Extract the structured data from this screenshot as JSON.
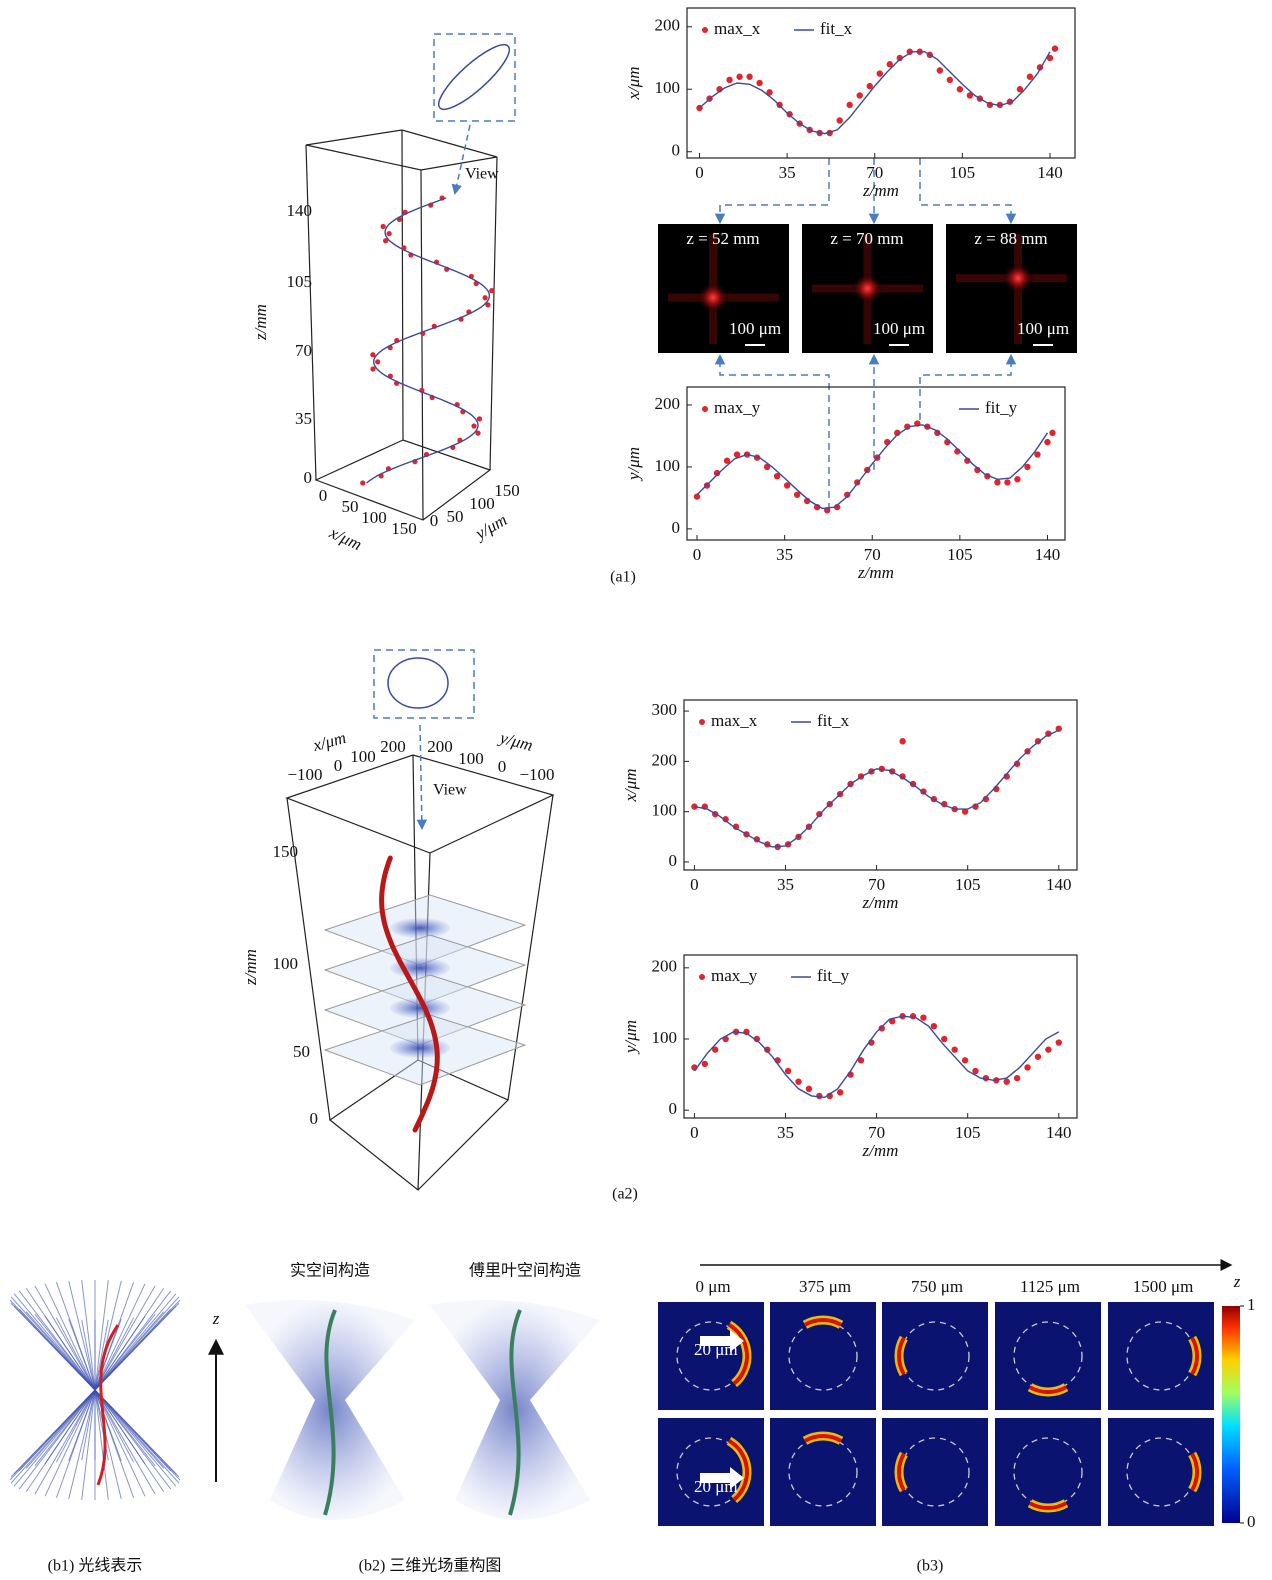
{
  "chart_data": [
    {
      "type": "scatter",
      "ylabel": "x/μm",
      "xlabel": "z/mm",
      "xlim": [
        -5,
        150
      ],
      "ylim": [
        -10,
        230
      ],
      "xticks": [
        0,
        35,
        70,
        105,
        140
      ],
      "yticks": [
        0,
        100,
        200
      ],
      "series": [
        {
          "name": "max_x",
          "mode": "markers",
          "color": "#e0262b",
          "x": [
            0,
            4,
            8,
            12,
            16,
            20,
            24,
            28,
            32,
            36,
            40,
            44,
            48,
            52,
            56,
            60,
            64,
            68,
            72,
            76,
            80,
            84,
            88,
            92,
            96,
            100,
            104,
            108,
            112,
            116,
            120,
            124,
            128,
            132,
            136,
            140,
            142
          ],
          "values": [
            70,
            85,
            100,
            115,
            120,
            120,
            110,
            95,
            75,
            60,
            45,
            35,
            30,
            30,
            50,
            75,
            90,
            105,
            125,
            140,
            150,
            160,
            160,
            155,
            130,
            115,
            100,
            90,
            85,
            75,
            75,
            80,
            100,
            120,
            135,
            150,
            165
          ]
        },
        {
          "name": "fit_x",
          "mode": "line",
          "color": "#3a4aa0",
          "x": [
            0,
            5,
            10,
            15,
            20,
            25,
            30,
            35,
            40,
            45,
            50,
            55,
            60,
            65,
            70,
            75,
            80,
            85,
            90,
            95,
            100,
            105,
            110,
            115,
            120,
            125,
            130,
            135,
            140
          ],
          "values": [
            70,
            88,
            102,
            110,
            108,
            98,
            82,
            62,
            45,
            33,
            29,
            35,
            55,
            80,
            105,
            128,
            148,
            160,
            160,
            148,
            128,
            108,
            90,
            78,
            74,
            80,
            100,
            125,
            160
          ]
        }
      ]
    },
    {
      "type": "scatter",
      "ylabel": "y/μm",
      "xlabel": "z/mm",
      "xlim": [
        -4,
        147
      ],
      "ylim": [
        -18,
        229
      ],
      "xticks": [
        0,
        35,
        70,
        105,
        140
      ],
      "yticks": [
        0,
        100,
        200
      ],
      "series": [
        {
          "name": "max_y",
          "mode": "markers",
          "color": "#e0262b",
          "x": [
            0,
            4,
            8,
            12,
            16,
            20,
            24,
            28,
            32,
            36,
            40,
            44,
            48,
            52,
            56,
            60,
            64,
            68,
            72,
            76,
            80,
            84,
            88,
            92,
            96,
            100,
            104,
            108,
            112,
            116,
            120,
            124,
            128,
            132,
            136,
            140,
            142
          ],
          "values": [
            52,
            70,
            90,
            110,
            120,
            120,
            115,
            100,
            85,
            70,
            55,
            45,
            35,
            30,
            35,
            55,
            75,
            95,
            115,
            140,
            155,
            165,
            170,
            165,
            155,
            140,
            125,
            110,
            95,
            85,
            75,
            75,
            80,
            100,
            120,
            140,
            155
          ]
        },
        {
          "name": "fit_y",
          "mode": "line",
          "color": "#3a4aa0",
          "x": [
            0,
            5,
            10,
            15,
            20,
            25,
            30,
            35,
            40,
            45,
            50,
            55,
            60,
            65,
            70,
            75,
            80,
            85,
            90,
            95,
            100,
            105,
            110,
            115,
            120,
            125,
            130,
            135,
            140
          ],
          "values": [
            55,
            75,
            95,
            113,
            120,
            115,
            100,
            82,
            63,
            45,
            33,
            35,
            52,
            78,
            105,
            130,
            152,
            165,
            168,
            160,
            145,
            125,
            105,
            88,
            80,
            82,
            100,
            125,
            155
          ]
        }
      ]
    },
    {
      "type": "scatter",
      "ylabel": "x/μm",
      "xlabel": "z/mm",
      "xlim": [
        -4,
        147
      ],
      "ylim": [
        -16,
        322
      ],
      "xticks": [
        0,
        35,
        70,
        105,
        140
      ],
      "yticks": [
        0,
        100,
        200,
        300
      ],
      "series": [
        {
          "name": "max_x",
          "mode": "markers",
          "color": "#e0262b",
          "x": [
            0,
            4,
            8,
            12,
            16,
            20,
            24,
            28,
            32,
            36,
            40,
            44,
            48,
            52,
            56,
            60,
            64,
            68,
            72,
            76,
            80,
            84,
            88,
            92,
            96,
            100,
            104,
            108,
            112,
            116,
            120,
            124,
            128,
            132,
            136,
            140,
            80
          ],
          "values": [
            110,
            110,
            95,
            85,
            70,
            55,
            45,
            35,
            30,
            35,
            50,
            70,
            95,
            115,
            135,
            155,
            170,
            180,
            185,
            180,
            170,
            155,
            140,
            125,
            115,
            105,
            100,
            110,
            125,
            145,
            170,
            195,
            220,
            240,
            255,
            265,
            240
          ]
        },
        {
          "name": "fit_x",
          "mode": "line",
          "color": "#3a4aa0",
          "x": [
            0,
            5,
            10,
            15,
            20,
            25,
            30,
            35,
            40,
            45,
            50,
            55,
            60,
            65,
            70,
            75,
            80,
            85,
            90,
            95,
            100,
            105,
            110,
            115,
            120,
            125,
            130,
            135,
            140
          ],
          "values": [
            110,
            105,
            90,
            70,
            55,
            40,
            30,
            32,
            50,
            75,
            105,
            130,
            155,
            172,
            185,
            182,
            168,
            150,
            130,
            115,
            105,
            105,
            118,
            145,
            175,
            205,
            230,
            250,
            262
          ]
        }
      ]
    },
    {
      "type": "scatter",
      "ylabel": "y/μm",
      "xlabel": "z/mm",
      "xlim": [
        -4,
        147
      ],
      "ylim": [
        -11,
        218
      ],
      "xticks": [
        0,
        35,
        70,
        105,
        140
      ],
      "yticks": [
        0,
        100,
        200
      ],
      "series": [
        {
          "name": "max_y",
          "mode": "markers",
          "color": "#e0262b",
          "x": [
            0,
            4,
            8,
            12,
            16,
            20,
            24,
            28,
            32,
            36,
            40,
            44,
            48,
            52,
            56,
            60,
            64,
            68,
            72,
            76,
            80,
            84,
            88,
            92,
            96,
            100,
            104,
            108,
            112,
            116,
            120,
            124,
            128,
            132,
            136,
            140
          ],
          "values": [
            60,
            65,
            85,
            100,
            110,
            110,
            100,
            85,
            70,
            55,
            40,
            30,
            20,
            20,
            25,
            50,
            70,
            95,
            115,
            125,
            132,
            132,
            130,
            118,
            100,
            85,
            70,
            55,
            45,
            42,
            40,
            45,
            60,
            75,
            85,
            95
          ]
        },
        {
          "name": "fit_y",
          "mode": "line",
          "color": "#3a4aa0",
          "x": [
            0,
            5,
            10,
            15,
            20,
            25,
            30,
            35,
            40,
            45,
            50,
            55,
            60,
            65,
            70,
            75,
            80,
            85,
            90,
            95,
            100,
            105,
            110,
            115,
            120,
            125,
            130,
            135,
            140
          ],
          "values": [
            55,
            80,
            100,
            110,
            108,
            95,
            75,
            50,
            30,
            20,
            18,
            30,
            55,
            85,
            110,
            128,
            132,
            130,
            118,
            95,
            75,
            55,
            45,
            42,
            45,
            60,
            80,
            100,
            110
          ]
        }
      ]
    }
  ],
  "figure_a1": {
    "caption": "(a1)",
    "view": "View",
    "axes3d": {
      "z_label": "z/mm",
      "z_ticks": [
        "140",
        "105",
        "70",
        "35",
        "0"
      ],
      "x_label": "x/μm",
      "x_ticks": [
        "0",
        "50",
        "100",
        "150"
      ],
      "y_label": "y/μm",
      "y_ticks": [
        "0",
        "50",
        "100",
        "150"
      ]
    },
    "slices": [
      {
        "label": "z = 52 mm",
        "scale": "100 μm"
      },
      {
        "label": "z = 70 mm",
        "scale": "100 μm"
      },
      {
        "label": "z = 88 mm",
        "scale": "100 μm"
      }
    ]
  },
  "figure_a2": {
    "caption": "(a2)",
    "view": "View",
    "axes3d": {
      "z_label": "z/mm",
      "z_ticks": [
        "150",
        "100",
        "50",
        "0"
      ],
      "x_label": "x/μm",
      "x_ticks": [
        "−100",
        "0",
        "100",
        "200"
      ],
      "y_label": "y/μm",
      "y_ticks": [
        "200",
        "100",
        "0",
        "−100"
      ]
    }
  },
  "figure_b": {
    "b1_caption": "(b1) 光线表示",
    "b2_caption": "(b2) 三维光场重构图",
    "b3_caption": "(b3)",
    "z_axis": "z",
    "b2_titles": [
      "实空间构造",
      "傅里叶空间构造"
    ],
    "b3_positions": [
      "0 μm",
      "375 μm",
      "750 μm",
      "1125 μm",
      "1500 μm"
    ],
    "b3_axis": "z",
    "scale_label": "20 μm",
    "colorbar": {
      "lim": [
        0,
        1
      ],
      "ticks": [
        1,
        0
      ]
    }
  }
}
